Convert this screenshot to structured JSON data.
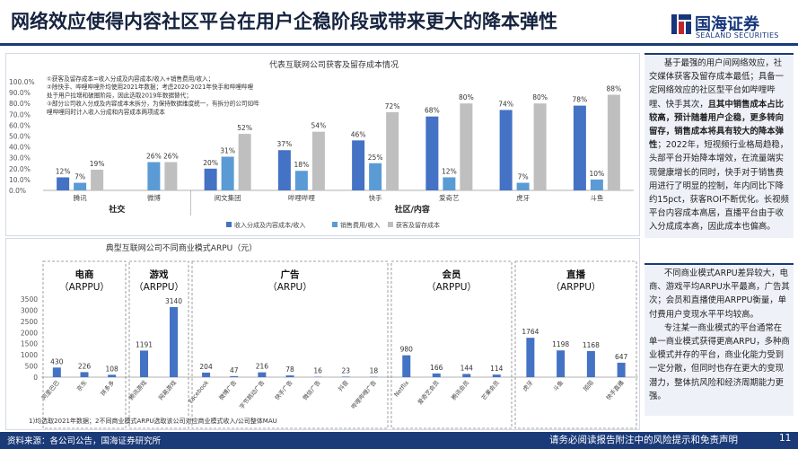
{
  "page": {
    "title": "网络效应使得内容社区平台在用户企稳阶段或带来更大的降本弹性",
    "logo_cn": "国海证券",
    "logo_en": "SEALAND SECURITIES",
    "footer_source": "资料来源：各公司公告，国海证券研究所",
    "footer_disclaimer": "请务必阅读报告附注中的风险提示和免责声明",
    "page_number": "11",
    "colors": {
      "navy": "#1a3a78",
      "blue": "#4472c4",
      "light_blue": "#5b9bd5",
      "gray": "#bfbfbf"
    }
  },
  "chart_data": [
    {
      "type": "bar",
      "title": "代表互联网公司获客及留存成本情况",
      "notes": [
        "①获客及留存成本=收入分成及内容成本/收入+销售费用/收入；",
        "②除快手、哔哩哔哩外均使用2021年数据；考虑2020-2021年快手和哔哩哔哩",
        "处于用户拉增和破圈阶段，因此选取2019年数据替代；",
        "③部分公司收入分成及内容成本未拆分，为保持数据维度统一，有拆分的公司如哔",
        "哩哔哩同时计入收入分成和内容成本两项成本"
      ],
      "categories": [
        "腾讯",
        "微博",
        "阅文集团",
        "哔哩哔哩",
        "快手",
        "爱奇艺",
        "虎牙",
        "斗鱼"
      ],
      "groups": [
        {
          "name": "社交",
          "categories": [
            "腾讯",
            "微博"
          ]
        },
        {
          "name": "社区/内容",
          "categories": [
            "阅文集团",
            "哔哩哔哩",
            "快手",
            "爱奇艺",
            "虎牙",
            "斗鱼"
          ]
        }
      ],
      "series": [
        {
          "name": "收入分成及内容成本/收入",
          "color": "#4472c4",
          "values": [
            12,
            null,
            20,
            37,
            46,
            68,
            74,
            78
          ],
          "labels": [
            "12%",
            "",
            "20%",
            "37%",
            "46%",
            "68%",
            "74%",
            "78%"
          ]
        },
        {
          "name": "销售费用/收入",
          "color": "#5b9bd5",
          "values": [
            7,
            26,
            31,
            18,
            25,
            12,
            7,
            10
          ],
          "labels": [
            "7%",
            "26%",
            "31%",
            "18%",
            "25%",
            "12%",
            "7%",
            "10%"
          ]
        },
        {
          "name": "获客及留存成本",
          "color": "#bfbfbf",
          "values": [
            19,
            26,
            52,
            54,
            72,
            80,
            80,
            88
          ],
          "labels": [
            "19%",
            "26%",
            "52%",
            "54%",
            "72%",
            "80%",
            "80%",
            "88%"
          ]
        }
      ],
      "ylim": [
        0,
        100
      ],
      "yticks": [
        "100.0%",
        "90.0%",
        "80.0%",
        "70.0%",
        "60.0%",
        "50.0%",
        "40.0%",
        "30.0%",
        "20.0%",
        "10.0%",
        "0.0%"
      ],
      "legend_position": "bottom"
    },
    {
      "type": "bar",
      "title": "典型互联网公司不同商业模式ARPU（元）",
      "yticks": [
        "3500",
        "3000",
        "2500",
        "2000",
        "1500",
        "1000",
        "500",
        "0"
      ],
      "ylim": [
        0,
        3500
      ],
      "footnote": "1)均选取2021年数据；2不同商业模式ARPU选取该公司对应商业模式收入/公司整体MAU",
      "groups": [
        {
          "title": "电商",
          "subtitle": "（ARPPU）",
          "bars": [
            {
              "label": "阿里巴巴",
              "value": 430
            },
            {
              "label": "京东",
              "value": 226
            },
            {
              "label": "拼多多",
              "value": 108
            }
          ]
        },
        {
          "title": "游戏",
          "subtitle": "（ARPPU）",
          "bars": [
            {
              "label": "腾讯游戏",
              "value": 1191
            },
            {
              "label": "网易游戏",
              "value": 3140
            }
          ]
        },
        {
          "title": "广告",
          "subtitle": "（ARPU）",
          "bars": [
            {
              "label": "Facebook",
              "value": 204
            },
            {
              "label": "微博广告",
              "value": 47
            },
            {
              "label": "字节跳动广告",
              "value": 216
            },
            {
              "label": "快手广告",
              "value": 78
            },
            {
              "label": "微信广告",
              "value": 16
            },
            {
              "label": "抖音",
              "value": 23
            },
            {
              "label": "哔哩哔哩广告",
              "value": 18
            }
          ]
        },
        {
          "title": "会员",
          "subtitle": "（ARPPU）",
          "bars": [
            {
              "label": "Netflix",
              "value": 980
            },
            {
              "label": "爱奇艺会员",
              "value": 166
            },
            {
              "label": "腾讯会员",
              "value": 144
            },
            {
              "label": "芒果会员",
              "value": 114
            }
          ]
        },
        {
          "title": "直播",
          "subtitle": "（ARPPU）",
          "bars": [
            {
              "label": "虎牙",
              "value": 1764
            },
            {
              "label": "斗鱼",
              "value": 1198
            },
            {
              "label": "陌陌",
              "value": 1168
            },
            {
              "label": "快手直播",
              "value": 647
            }
          ]
        }
      ]
    }
  ],
  "sidebar": {
    "box1": [
      {
        "text": "基于最强的用户间网络效应，社交媒体获客及留存成本最低；具备一定网络效应的社区型平台如哔哩哔哩、快手其次，",
        "bold": false
      },
      {
        "text": "且其中销售成本占比较高，预计随着用户企稳，更多转向留存，销售成本将具有较大的降本弹性",
        "bold": true
      },
      {
        "text": "；2022年，短视频行业格局趋稳，头部平台开始降本增效，在流量端实现健康增长的同时，快手对于销售费用进行了明显的控制，年内同比下降约15pct，获客ROI不断优化。长视频平台内容成本高居，直播平台由于收入分成成本高，因此成本也偏高。",
        "bold": false
      }
    ],
    "box2": [
      "不同商业模式ARPU差异较大，电商、游戏平均ARPU水平最高，广告其次；会员和直播使用ARPPU衡量，单付费用户变现水平平均较高。",
      "专注某一商业模式的平台通常在单一商业模式获得更高ARPU，多种商业模式并存的平台，商业化能力受到一定分散，但同时也存在更大的变现潜力，整体抗风险和经济周期能力更强。"
    ]
  }
}
